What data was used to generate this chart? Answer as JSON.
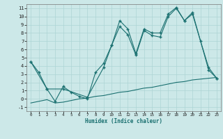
{
  "xlabel": "Humidex (Indice chaleur)",
  "bg_color": "#cce8e8",
  "grid_color": "#add4d4",
  "line_color": "#1a7070",
  "xlim": [
    -0.5,
    23.5
  ],
  "ylim": [
    -1.5,
    11.5
  ],
  "xticks": [
    0,
    1,
    2,
    3,
    4,
    5,
    6,
    7,
    8,
    9,
    10,
    11,
    12,
    13,
    14,
    15,
    16,
    17,
    18,
    19,
    20,
    21,
    22,
    23
  ],
  "yticks": [
    -1,
    0,
    1,
    2,
    3,
    4,
    5,
    6,
    7,
    8,
    9,
    10,
    11
  ],
  "line1_x": [
    0,
    1,
    2,
    3,
    4,
    5,
    6,
    7,
    8,
    9,
    10,
    11,
    12,
    13,
    14,
    15,
    16,
    17,
    18,
    19,
    20,
    21,
    22,
    23
  ],
  "line1_y": [
    4.5,
    3.2,
    1.2,
    -0.3,
    1.5,
    0.8,
    0.3,
    0.0,
    3.2,
    4.3,
    6.5,
    8.8,
    7.8,
    5.3,
    8.3,
    7.7,
    7.5,
    10.0,
    11.0,
    9.5,
    10.3,
    7.0,
    3.8,
    2.5
  ],
  "line2_x": [
    0,
    2,
    4,
    7,
    9,
    10,
    11,
    12,
    13,
    14,
    15,
    16,
    17,
    18,
    19,
    20,
    22,
    23
  ],
  "line2_y": [
    4.5,
    1.2,
    1.2,
    0.2,
    3.8,
    6.5,
    9.5,
    8.5,
    5.5,
    8.5,
    8.0,
    8.0,
    10.3,
    11.1,
    9.5,
    10.5,
    3.5,
    2.5
  ],
  "line3_x": [
    0,
    1,
    2,
    3,
    4,
    5,
    6,
    7,
    8,
    9,
    10,
    11,
    12,
    13,
    14,
    15,
    16,
    17,
    18,
    19,
    20,
    21,
    22,
    23
  ],
  "line3_y": [
    -0.5,
    -0.3,
    -0.1,
    -0.5,
    -0.4,
    -0.2,
    0.0,
    0.1,
    0.3,
    0.4,
    0.6,
    0.8,
    0.9,
    1.1,
    1.3,
    1.4,
    1.6,
    1.8,
    2.0,
    2.1,
    2.3,
    2.4,
    2.5,
    2.6
  ]
}
